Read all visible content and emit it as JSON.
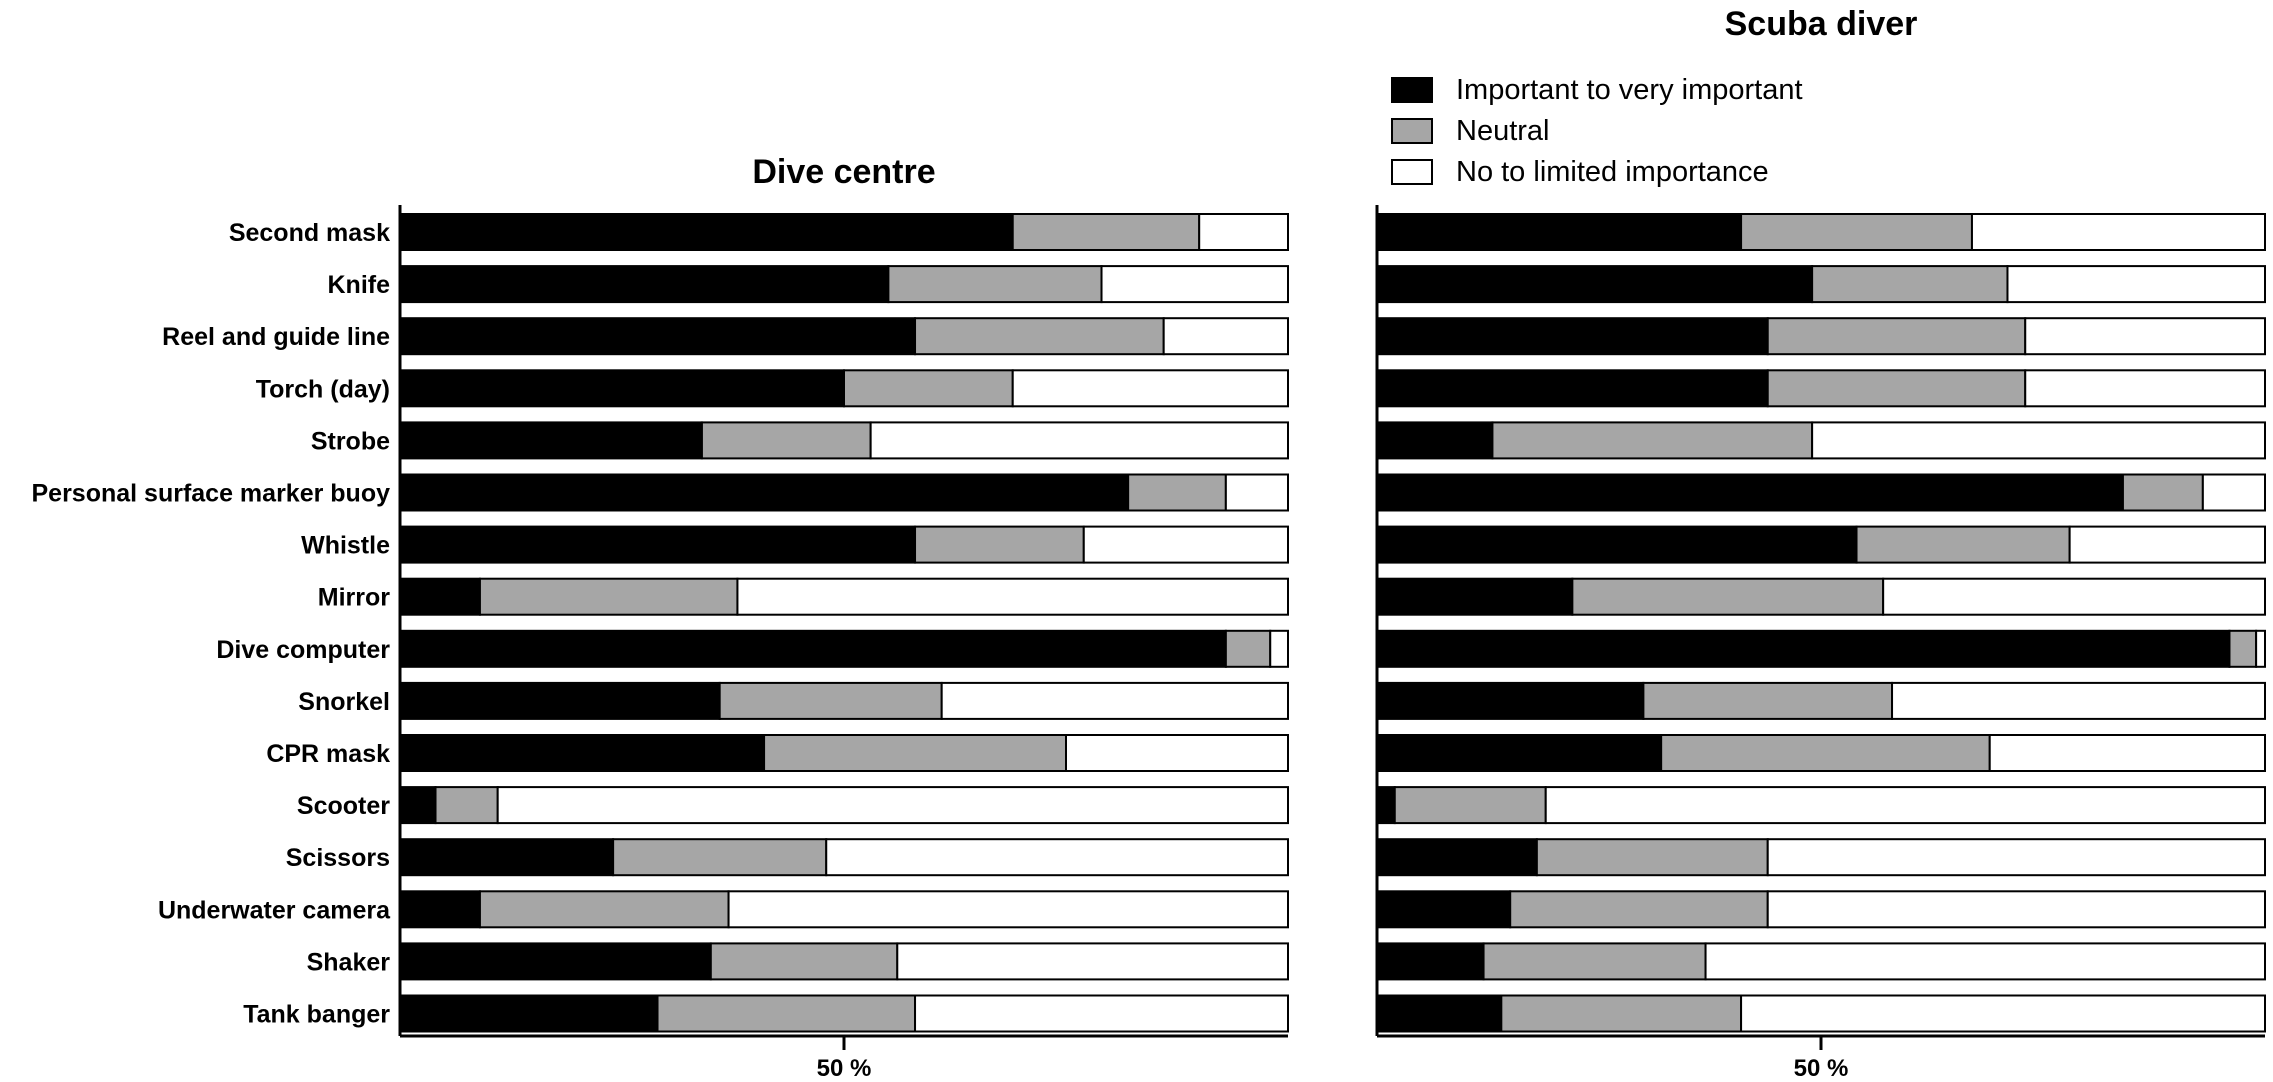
{
  "chart_data": {
    "type": "bar",
    "stacked": true,
    "orientation": "horizontal",
    "xlabel": "50 %",
    "xlim": [
      0,
      100
    ],
    "legend": {
      "placement": "top-right",
      "entries": [
        {
          "name": "Important to very important",
          "color": "#000000"
        },
        {
          "name": "Neutral",
          "color": "#a6a6a6"
        },
        {
          "name": "No to limited importance",
          "color": "#ffffff"
        }
      ]
    },
    "categories": [
      "Second mask",
      "Knife",
      "Reel and guide line",
      "Torch (day)",
      "Strobe",
      "Personal surface marker buoy",
      "Whistle",
      "Mirror",
      "Dive computer",
      "Snorkel",
      "CPR mask",
      "Scooter",
      "Scissors",
      "Underwater camera",
      "Shaker",
      "Tank banger"
    ],
    "panels": [
      {
        "title": "Dive centre",
        "series": [
          {
            "name": "Important to very important",
            "values": [
              69,
              55,
              58,
              50,
              34,
              82,
              58,
              9,
              93,
              36,
              41,
              4,
              24,
              9,
              35,
              29
            ]
          },
          {
            "name": "Neutral",
            "values": [
              21,
              24,
              28,
              19,
              19,
              11,
              19,
              29,
              5,
              25,
              34,
              7,
              24,
              28,
              21,
              29
            ]
          },
          {
            "name": "No to limited importance",
            "values": [
              10,
              21,
              14,
              31,
              47,
              7,
              23,
              62,
              2,
              39,
              25,
              89,
              52,
              63,
              44,
              42
            ]
          }
        ]
      },
      {
        "title": "Scuba diver",
        "series": [
          {
            "name": "Important to very important",
            "values": [
              41,
              49,
              44,
              44,
              13,
              84,
              54,
              22,
              96,
              30,
              32,
              2,
              18,
              15,
              12,
              14
            ]
          },
          {
            "name": "Neutral",
            "values": [
              26,
              22,
              29,
              29,
              36,
              9,
              24,
              35,
              3,
              28,
              37,
              17,
              26,
              29,
              25,
              27
            ]
          },
          {
            "name": "No to limited importance",
            "values": [
              33,
              29,
              27,
              27,
              51,
              7,
              22,
              43,
              1,
              42,
              31,
              81,
              56,
              56,
              63,
              59
            ]
          }
        ]
      }
    ]
  }
}
